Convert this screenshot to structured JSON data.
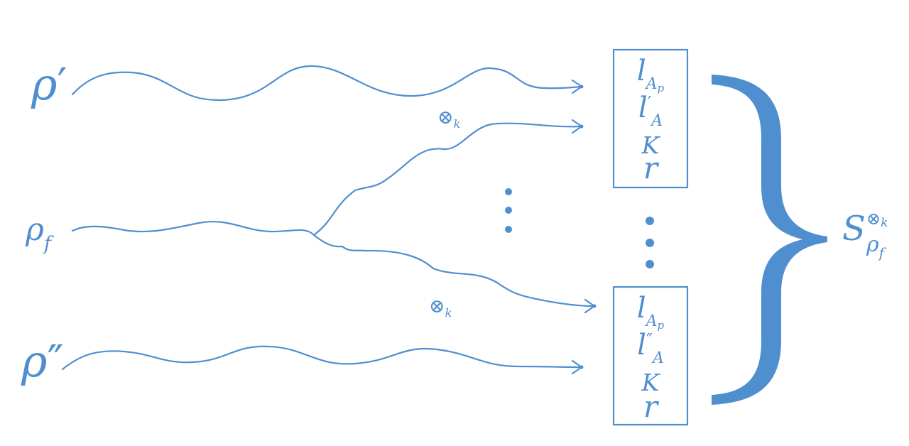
{
  "colors": {
    "ink": "#4f8fd0",
    "background": "#ffffff"
  },
  "inputs": {
    "rho_prime": {
      "symbol": "ρ",
      "mark": "′"
    },
    "rho_f": {
      "symbol": "ρ",
      "subscript": "f"
    },
    "rho_dprime": {
      "symbol": "ρ",
      "mark": "″"
    }
  },
  "branch_labels": {
    "symbol": "⊗",
    "subscript": "k"
  },
  "top_box": {
    "line1_base": "l",
    "line1_sub_A": "A",
    "line1_sub_p": "p",
    "line2_base": "l",
    "line2_mark": "′",
    "line2_sub": "A",
    "line3": "K",
    "line4": "r"
  },
  "bottom_box": {
    "line1_base": "l",
    "line1_sub_A": "A",
    "line1_sub_p": "p",
    "line2_base": "l",
    "line2_mark": "″",
    "line2_sub": "A",
    "line3": "K",
    "line4": "r"
  },
  "result": {
    "base": "S",
    "sup_symbol": "⊗",
    "sup_sub": "k",
    "sub_symbol": "ρ",
    "sub_sub": "f"
  }
}
